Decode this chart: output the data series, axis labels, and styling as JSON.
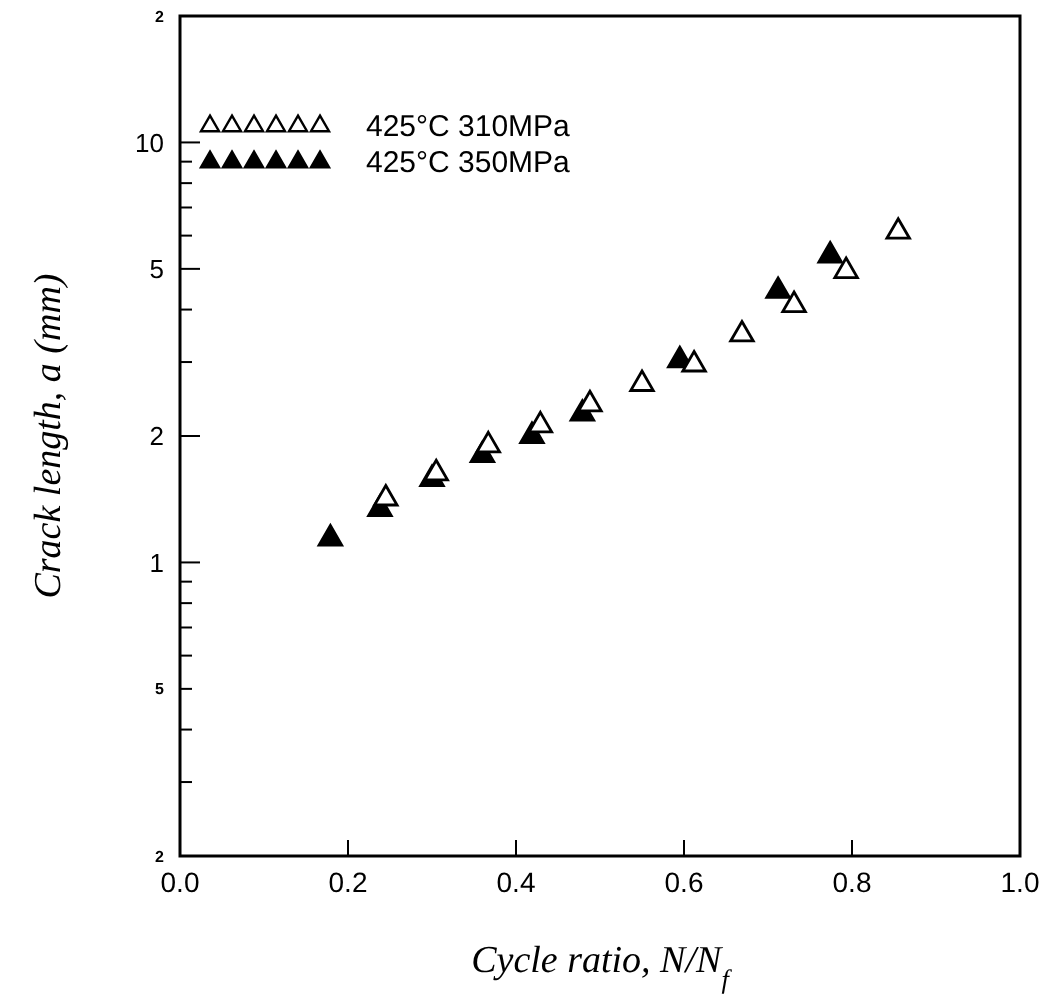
{
  "chart_data": {
    "type": "scatter",
    "xlabel": "Cycle ratio, N/N$_{f}$",
    "ylabel": "Crack length, a (mm)",
    "xlim": [
      0,
      1
    ],
    "xticks": [
      {
        "value": 0,
        "label": "0.0"
      },
      0.2,
      0.4,
      0.6,
      0.8,
      {
        "value": 1,
        "label": "1.0"
      }
    ],
    "log": true,
    "ylim": [
      0.2,
      20
    ],
    "annotations": [
      "2",
      "5",
      "2"
    ],
    "yticks": [
      {
        "value": 0.2,
        "label": null
      },
      {
        "value": 0.3,
        "label": null
      },
      {
        "value": 0.4,
        "label": null
      },
      {
        "value": 0.5,
        "label": null
      },
      {
        "value": 0.6,
        "label": null
      },
      {
        "value": 0.7,
        "label": null
      },
      {
        "value": 0.8,
        "label": null
      },
      {
        "value": 0.9,
        "label": null
      },
      1,
      2,
      {
        "value": 3,
        "label": null
      },
      {
        "value": 4,
        "label": null
      },
      {
        "value": 5,
        "label": "5"
      },
      {
        "value": 6,
        "label": null
      },
      {
        "value": 7,
        "label": null
      },
      {
        "value": 8,
        "label": null
      },
      {
        "value": 9,
        "label": null
      },
      10,
      {
        "value": 20,
        "label": null
      }
    ],
    "marker": "triangle",
    "legend": "top left",
    "grid": false,
    "series": [
      {
        "name": "425°C 310MPa",
        "color": "#000000",
        "x": [
          0.245,
          0.305,
          0.367,
          0.429,
          0.488,
          0.55,
          0.612,
          0.669,
          0.731,
          0.793,
          0.855
        ],
        "values": [
          1.42,
          1.63,
          1.9,
          2.12,
          2.38,
          2.66,
          2.96,
          3.49,
          4.1,
          4.94,
          6.13
        ]
      },
      {
        "name": "425°C 350MPa",
        "color": "#000000",
        "x": [
          0.179,
          0.238,
          0.3,
          0.36,
          0.419,
          0.479,
          0.595,
          0.712,
          0.774
        ],
        "values": [
          1.14,
          1.34,
          1.58,
          1.8,
          2.0,
          2.26,
          3.03,
          4.43,
          5.38
        ]
      }
    ]
  }
}
